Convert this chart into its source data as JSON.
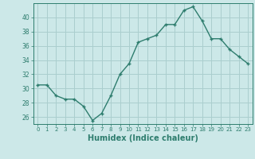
{
  "x": [
    0,
    1,
    2,
    3,
    4,
    5,
    6,
    7,
    8,
    9,
    10,
    11,
    12,
    13,
    14,
    15,
    16,
    17,
    18,
    19,
    20,
    21,
    22,
    23
  ],
  "y": [
    30.5,
    30.5,
    29.0,
    28.5,
    28.5,
    27.5,
    25.5,
    26.5,
    29.0,
    32.0,
    33.5,
    36.5,
    37.0,
    37.5,
    39.0,
    39.0,
    41.0,
    41.5,
    39.5,
    37.0,
    37.0,
    35.5,
    34.5,
    33.5
  ],
  "line_color": "#2e7d6e",
  "bg_color": "#cce8e8",
  "grid_color": "#aacece",
  "xlabel": "Humidex (Indice chaleur)",
  "ylim": [
    25,
    42
  ],
  "yticks": [
    26,
    28,
    30,
    32,
    34,
    36,
    38,
    40
  ],
  "xticks": [
    0,
    1,
    2,
    3,
    4,
    5,
    6,
    7,
    8,
    9,
    10,
    11,
    12,
    13,
    14,
    15,
    16,
    17,
    18,
    19,
    20,
    21,
    22,
    23
  ],
  "marker": "+",
  "linewidth": 1.0,
  "markersize": 3.5
}
